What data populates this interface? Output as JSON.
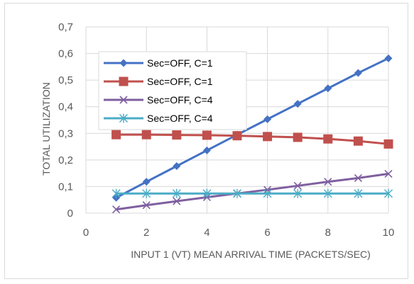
{
  "chart_data": {
    "type": "line",
    "title": "",
    "xlabel": "INPUT 1 (VT) MEAN ARRIVAL TIME (PACKETS/SEC)",
    "ylabel": "TOTAL UTILIZATION",
    "xlim": [
      0,
      10
    ],
    "ylim": [
      0,
      0.7
    ],
    "x_ticks": [
      0,
      2,
      4,
      6,
      8,
      10
    ],
    "y_ticks": [
      0,
      0.1,
      0.2,
      0.3,
      0.4,
      0.5,
      0.6,
      0.7
    ],
    "x_tick_labels": [
      "0",
      "2",
      "4",
      "6",
      "8",
      "10"
    ],
    "y_tick_labels": [
      "0",
      "0,1",
      "0,2",
      "0,3",
      "0,4",
      "0,5",
      "0,6",
      "0,7"
    ],
    "grid": true,
    "legend_position": "upper-left inside plot",
    "x": [
      1,
      2,
      3,
      4,
      5,
      6,
      7,
      8,
      9,
      10
    ],
    "series": [
      {
        "name": "Sec=OFF, C=1",
        "color": "#4472c4",
        "marker": "diamond",
        "values": [
          0.058,
          0.118,
          0.177,
          0.236,
          0.295,
          0.353,
          0.411,
          0.469,
          0.527,
          0.582
        ]
      },
      {
        "name": "Sec=OFF, C=1",
        "color": "#c0504d",
        "marker": "square",
        "values": [
          0.295,
          0.295,
          0.294,
          0.293,
          0.291,
          0.288,
          0.285,
          0.279,
          0.271,
          0.26
        ]
      },
      {
        "name": "Sec=OFF, C=4",
        "color": "#7f5fa0",
        "marker": "x",
        "values": [
          0.014,
          0.03,
          0.045,
          0.06,
          0.074,
          0.088,
          0.103,
          0.118,
          0.132,
          0.148
        ]
      },
      {
        "name": "Sec=OFF, C=4",
        "color": "#4bacc6",
        "marker": "asterisk",
        "values": [
          0.074,
          0.074,
          0.074,
          0.074,
          0.074,
          0.074,
          0.074,
          0.074,
          0.074,
          0.074
        ]
      }
    ]
  }
}
